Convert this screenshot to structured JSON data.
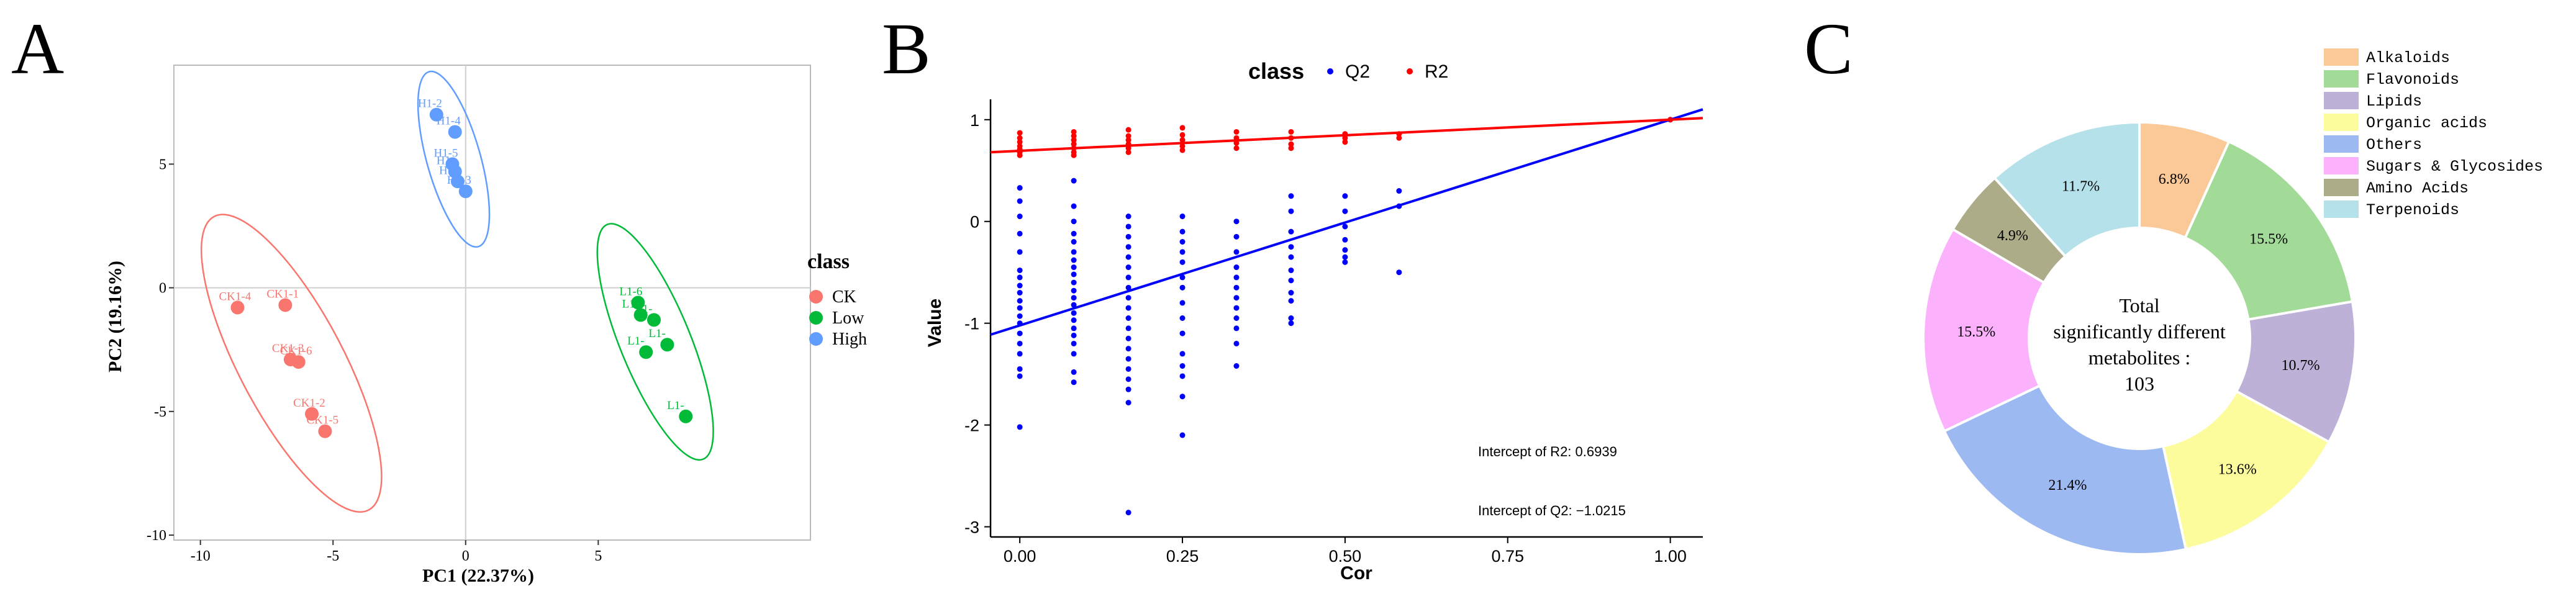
{
  "chart_data": [
    {
      "panel_label": "A",
      "type": "scatter",
      "xlabel": "PC1 (22.37%)",
      "ylabel": "PC2 (19.16%)",
      "xlim": [
        -11,
        13
      ],
      "ylim": [
        -10.2,
        9
      ],
      "xticks": [
        -10,
        -5,
        0,
        5
      ],
      "yticks": [
        -10,
        -5,
        0,
        5
      ],
      "tick_labels_x": [
        "-10",
        "-5",
        "0",
        "5"
      ],
      "tick_labels_y": [
        "-10",
        "-5",
        "0",
        "5"
      ],
      "legend_title": "class",
      "legend_position": "right",
      "series": [
        {
          "name": "CK",
          "color": "#F8766D",
          "points": [
            {
              "label": "CK1-4",
              "x": -8.6,
              "y": -0.8
            },
            {
              "label": "CK1-1",
              "x": -6.8,
              "y": -0.7
            },
            {
              "label": "CK1-3",
              "x": -6.6,
              "y": -2.9
            },
            {
              "label": "CK1-6",
              "x": -6.3,
              "y": -3.0
            },
            {
              "label": "CK1-2",
              "x": -5.8,
              "y": -5.1
            },
            {
              "label": "CK1-5",
              "x": -5.3,
              "y": -5.8
            }
          ]
        },
        {
          "name": "Low",
          "color": "#00BA38",
          "points": [
            {
              "label": "L1-6",
              "x": 6.5,
              "y": -0.6
            },
            {
              "label": "L1-",
              "x": 6.6,
              "y": -1.1
            },
            {
              "label": "L1-",
              "x": 7.1,
              "y": -1.3
            },
            {
              "label": "L1-",
              "x": 7.6,
              "y": -2.3
            },
            {
              "label": "L1-",
              "x": 6.8,
              "y": -2.6
            },
            {
              "label": "L1-",
              "x": 8.3,
              "y": -5.2
            }
          ]
        },
        {
          "name": "High",
          "color": "#619CFF",
          "points": [
            {
              "label": "H1-2",
              "x": -1.1,
              "y": 7.0
            },
            {
              "label": "H1-4",
              "x": -0.4,
              "y": 6.3
            },
            {
              "label": "H1-5",
              "x": -0.5,
              "y": 5.0
            },
            {
              "label": "H1-",
              "x": -0.4,
              "y": 4.7
            },
            {
              "label": "H1-",
              "x": -0.3,
              "y": 4.3
            },
            {
              "label": "H1-3",
              "x": 0.0,
              "y": 3.9
            }
          ]
        }
      ]
    },
    {
      "panel_label": "B",
      "type": "scatter",
      "xlabel": "Cor",
      "ylabel": "Value",
      "xlim": [
        -0.045,
        1.05
      ],
      "ylim": [
        -3.1,
        1.2
      ],
      "xticks": [
        0.0,
        0.25,
        0.5,
        0.75,
        1.0
      ],
      "tick_labels_x": [
        "0.00",
        "0.25",
        "0.50",
        "0.75",
        "1.00"
      ],
      "yticks": [
        -3,
        -2,
        -1,
        0,
        1
      ],
      "tick_labels_y": [
        "-3",
        "-2",
        "-1",
        "0",
        "1"
      ],
      "legend_title": "class",
      "legend_position": "top",
      "annotations": [
        "Intercept of R2: 0.6939",
        "Intercept of Q2: −1.0215"
      ],
      "series": [
        {
          "name": "Q2",
          "color": "#0000FF",
          "intercept": -1.0215,
          "columns": [
            {
              "x": 0.0,
              "values": [
                0.33,
                0.2,
                0.05,
                -0.12,
                -0.3,
                -0.48,
                -0.55,
                -0.63,
                -0.7,
                -0.78,
                -0.85,
                -0.93,
                -1.0,
                -1.1,
                -1.2,
                -1.3,
                -1.45,
                -1.52,
                -2.02
              ]
            },
            {
              "x": 0.083,
              "values": [
                0.4,
                0.15,
                0.0,
                -0.12,
                -0.2,
                -0.3,
                -0.38,
                -0.45,
                -0.52,
                -0.6,
                -0.68,
                -0.75,
                -0.82,
                -0.9,
                -0.97,
                -1.05,
                -1.12,
                -1.2,
                -1.3,
                -1.48,
                -1.58
              ]
            },
            {
              "x": 0.167,
              "values": [
                0.05,
                -0.05,
                -0.15,
                -0.25,
                -0.35,
                -0.45,
                -0.55,
                -0.65,
                -0.75,
                -0.85,
                -0.95,
                -1.05,
                -1.15,
                -1.25,
                -1.35,
                -1.45,
                -1.55,
                -1.65,
                -1.78,
                -2.86
              ]
            },
            {
              "x": 0.25,
              "values": [
                0.05,
                -0.1,
                -0.2,
                -0.3,
                -0.4,
                -0.55,
                -0.65,
                -0.8,
                -0.95,
                -1.1,
                -1.3,
                -1.42,
                -1.52,
                -1.72,
                -2.1
              ]
            },
            {
              "x": 0.333,
              "values": [
                0.0,
                -0.15,
                -0.3,
                -0.45,
                -0.55,
                -0.65,
                -0.75,
                -0.85,
                -0.95,
                -1.05,
                -1.2,
                -1.42
              ]
            },
            {
              "x": 0.417,
              "values": [
                0.25,
                0.1,
                -0.1,
                -0.25,
                -0.35,
                -0.48,
                -0.58,
                -0.7,
                -0.78,
                -0.95,
                -1.0
              ]
            },
            {
              "x": 0.5,
              "values": [
                0.25,
                0.1,
                -0.05,
                -0.18,
                -0.28,
                -0.35,
                -0.4
              ]
            },
            {
              "x": 0.583,
              "values": [
                0.3,
                0.15,
                -0.5
              ]
            },
            {
              "x": 1.0,
              "values": [
                1.0
              ]
            }
          ]
        },
        {
          "name": "R2",
          "color": "#FF0000",
          "intercept": 0.6939,
          "columns": [
            {
              "x": 0.0,
              "values": [
                0.87,
                0.82,
                0.78,
                0.74,
                0.71,
                0.68,
                0.65
              ]
            },
            {
              "x": 0.083,
              "values": [
                0.88,
                0.84,
                0.8,
                0.76,
                0.72,
                0.68,
                0.65
              ]
            },
            {
              "x": 0.167,
              "values": [
                0.9,
                0.84,
                0.8,
                0.76,
                0.72,
                0.68
              ]
            },
            {
              "x": 0.25,
              "values": [
                0.92,
                0.85,
                0.8,
                0.74,
                0.7
              ]
            },
            {
              "x": 0.333,
              "values": [
                0.88,
                0.82,
                0.77,
                0.72
              ]
            },
            {
              "x": 0.417,
              "values": [
                0.88,
                0.82,
                0.76,
                0.72
              ]
            },
            {
              "x": 0.5,
              "values": [
                0.86,
                0.82,
                0.78
              ]
            },
            {
              "x": 0.583,
              "values": [
                0.86,
                0.82
              ]
            },
            {
              "x": 1.0,
              "values": [
                1.0
              ]
            }
          ]
        }
      ]
    },
    {
      "panel_label": "C",
      "type": "pie",
      "center_text": [
        "Total",
        "significantly different",
        "metabolites :",
        "103"
      ],
      "legend_position": "top-right",
      "slices": [
        {
          "name": "Alkaloids",
          "value": 6.8,
          "label": "6.8%",
          "color": "#FBC897"
        },
        {
          "name": "Flavonoids",
          "value": 15.5,
          "label": "15.5%",
          "color": "#A2DA98"
        },
        {
          "name": "Lipids",
          "value": 10.7,
          "label": "10.7%",
          "color": "#BDB1D8"
        },
        {
          "name": "Organic acids",
          "value": 13.6,
          "label": "13.6%",
          "color": "#FCFC9C"
        },
        {
          "name": "Others",
          "value": 21.4,
          "label": "21.4%",
          "color": "#9DB9F1"
        },
        {
          "name": "Sugars & Glycosides",
          "value": 15.5,
          "label": "15.5%",
          "color": "#FBB1FB"
        },
        {
          "name": "Amino Acids",
          "value": 4.9,
          "label": "4.9%",
          "color": "#ADAC89"
        },
        {
          "name": "Terpenoids",
          "value": 11.7,
          "label": "11.7%",
          "color": "#B5E2EA"
        }
      ]
    }
  ]
}
